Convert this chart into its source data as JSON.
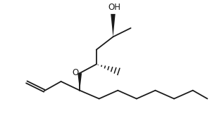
{
  "bg_color": "#ffffff",
  "line_color": "#1a1a1a",
  "lw": 1.3,
  "OH_label": "OH",
  "O_label": "O",
  "font_size": 8.5,
  "fig_w": 3.18,
  "fig_h": 1.95,
  "xlim": [
    0,
    10
  ],
  "ylim": [
    0,
    6.5
  ]
}
